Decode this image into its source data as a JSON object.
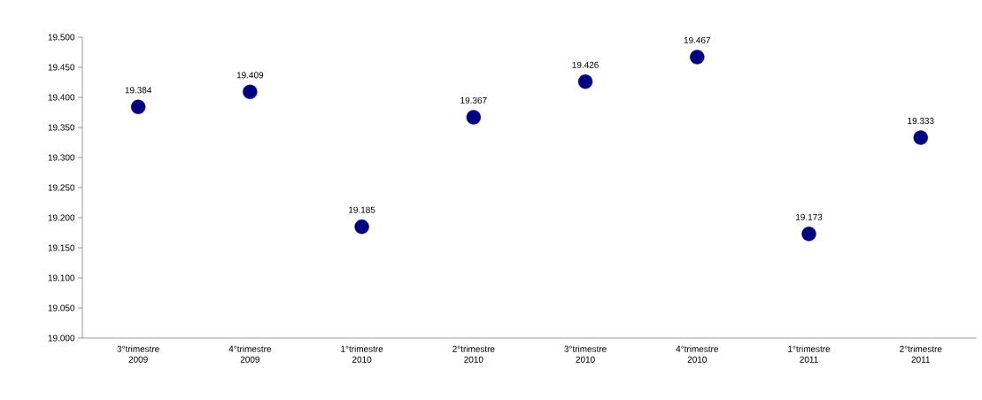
{
  "chart_data": {
    "type": "scatter",
    "categories": [
      "3°trimestre 2009",
      "4°trimestre 2009",
      "1°trimestre 2010",
      "2°trimestre 2010",
      "3°trimestre 2010",
      "4°trimestre 2010",
      "1°trimestre 2011",
      "2°trimestre 2011"
    ],
    "values": [
      19.384,
      19.409,
      19.185,
      19.367,
      19.426,
      19.467,
      19.173,
      19.333
    ],
    "value_labels": [
      "19.384",
      "19.409",
      "19.185",
      "19.367",
      "19.426",
      "19.467",
      "19.173",
      "19.333"
    ],
    "color": "#000080",
    "grid": false,
    "ylim": [
      19.0,
      19.5
    ],
    "yticks": [
      {
        "value": 19.0,
        "label": "19.000"
      },
      {
        "value": 19.05,
        "label": "19.050"
      },
      {
        "value": 19.1,
        "label": "19.100"
      },
      {
        "value": 19.15,
        "label": "19.150"
      },
      {
        "value": 19.2,
        "label": "19.200"
      },
      {
        "value": 19.25,
        "label": "19.250"
      },
      {
        "value": 19.3,
        "label": "19.300"
      },
      {
        "value": 19.35,
        "label": "19.350"
      },
      {
        "value": 19.4,
        "label": "19.400"
      },
      {
        "value": 19.45,
        "label": "19.450"
      },
      {
        "value": 19.5,
        "label": "19.500"
      }
    ]
  }
}
